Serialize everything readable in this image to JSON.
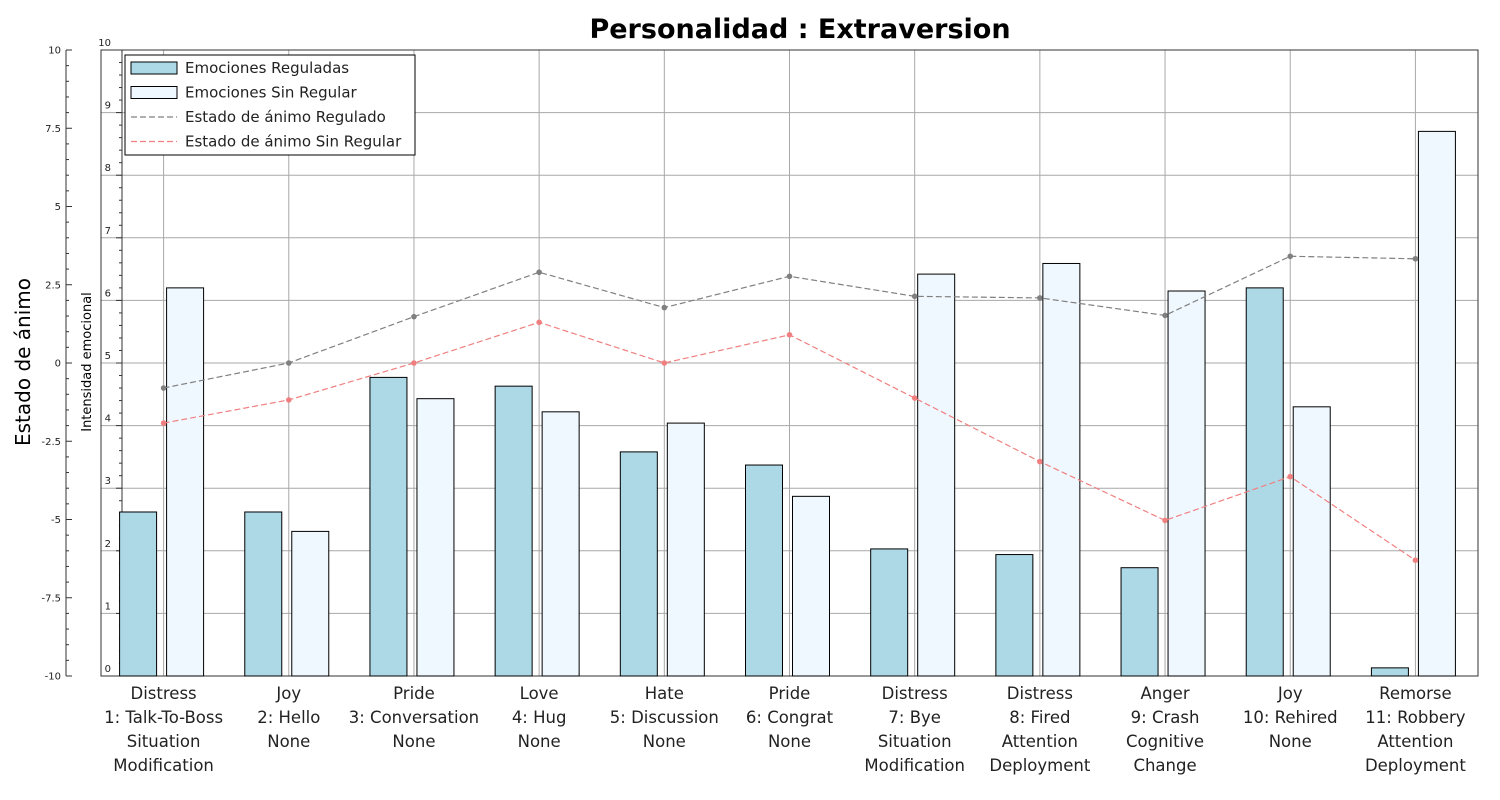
{
  "chart_data": {
    "type": "bar",
    "title": "Personalidad : Extraversion",
    "left_axis": {
      "label": "Estado de ánimo",
      "range": [
        -10,
        10
      ],
      "ticks": [
        "10",
        "7.5",
        "5",
        "2.5",
        "0",
        "-2.5",
        "-5",
        "-7.5",
        "-10"
      ]
    },
    "right_axis": {
      "label": "Intensidad emocional",
      "range": [
        0,
        10
      ],
      "ticks": [
        "10",
        "9",
        "8",
        "7",
        "6",
        "5",
        "4",
        "3",
        "2",
        "1",
        "0"
      ]
    },
    "grid": true,
    "legend_position": "top-left",
    "categories": [
      [
        "Distress",
        "1: Talk-To-Boss",
        "Situation",
        "Modification"
      ],
      [
        "Joy",
        "2: Hello",
        "None"
      ],
      [
        "Pride",
        "3: Conversation",
        "None"
      ],
      [
        "Love",
        "4: Hug",
        "None"
      ],
      [
        "Hate",
        "5: Discussion",
        "None"
      ],
      [
        "Pride",
        "6: Congrat",
        "None"
      ],
      [
        "Distress",
        "7: Bye",
        "Situation",
        "Modification"
      ],
      [
        "Distress",
        "8: Fired",
        "Attention",
        "Deployment"
      ],
      [
        "Anger",
        "9: Crash",
        "Cognitive",
        "Change"
      ],
      [
        "Joy",
        "10: Rehired",
        "None"
      ],
      [
        "Remorse",
        "11: Robbery",
        "Attention",
        "Deployment"
      ]
    ],
    "bar_series": [
      {
        "name": "Emociones Reguladas",
        "color": "#add8e6",
        "axis": "intensity",
        "values": [
          2.62,
          2.62,
          4.77,
          4.63,
          3.58,
          3.37,
          2.03,
          1.94,
          1.73,
          6.2,
          0.13
        ]
      },
      {
        "name": "Emociones Sin Regular",
        "color": "#f0f8ff",
        "axis": "intensity",
        "values": [
          6.2,
          2.31,
          4.43,
          4.22,
          4.04,
          2.87,
          6.42,
          6.59,
          6.15,
          4.3,
          8.7
        ]
      }
    ],
    "line_series": [
      {
        "name": "Estado de ánimo Regulado",
        "color": "#808080",
        "axis": "mood",
        "values": [
          -0.8,
          0.0,
          1.48,
          2.9,
          1.77,
          2.77,
          2.13,
          2.08,
          1.52,
          3.41,
          3.33
        ]
      },
      {
        "name": "Estado de ánimo Sin Regular",
        "color": "#f08080",
        "axis": "mood",
        "values": [
          -1.92,
          -1.18,
          0.0,
          1.3,
          0.0,
          0.9,
          -1.12,
          -3.15,
          -5.03,
          -3.63,
          -6.3
        ]
      }
    ]
  }
}
